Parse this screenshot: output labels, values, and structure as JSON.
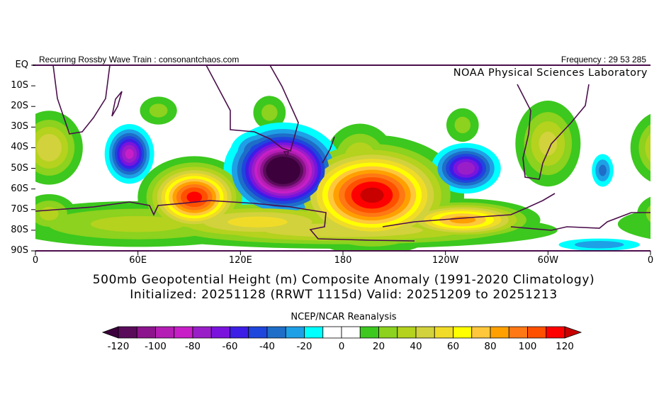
{
  "header": {
    "left_text": "Recurring Rossby Wave Train : consonantchaos.com",
    "right_text": "Frequency : 29 53 285",
    "lab_text": "NOAA Physical Sciences Laboratory"
  },
  "title": {
    "line1": "500mb Geopotential Height (m) Composite Anomaly (1991-2020 Climatology)",
    "line2": "Initialized: 20251128 (RRWT 1115d) Valid: 20251209 to 20251213"
  },
  "colorbar": {
    "title": "NCEP/NCAR Reanalysis",
    "labels": [
      "-120",
      "-100",
      "-80",
      "-60",
      "-40",
      "-20",
      "0",
      "20",
      "40",
      "60",
      "80",
      "100",
      "120"
    ],
    "colors": [
      "#5a0c5a",
      "#8c148c",
      "#b41eb4",
      "#c81ec8",
      "#9a1ec8",
      "#7a14dc",
      "#3c1ee6",
      "#1e46dc",
      "#1e6ec8",
      "#1ea0e6",
      "#00ffff",
      "#ffffff",
      "#ffffff",
      "#3cc81e",
      "#8cd21e",
      "#b4d21e",
      "#d2d23c",
      "#f0dc28",
      "#ffff00",
      "#ffc83c",
      "#ffa000",
      "#ff7814",
      "#ff5000",
      "#ff0000"
    ],
    "under_color": "#3c003c",
    "over_color": "#c80000"
  },
  "chart_data": {
    "type": "contour-map",
    "variable": "500mb geopotential height anomaly (m)",
    "levels_min": -120,
    "levels_max": 120,
    "level_step": 10,
    "lon_range": [
      0,
      360
    ],
    "lat_range": [
      0,
      -90
    ],
    "y_ticks": [
      "EQ",
      "10S",
      "20S",
      "30S",
      "40S",
      "50S",
      "60S",
      "70S",
      "80S",
      "90S"
    ],
    "x_ticks": [
      "0",
      "60E",
      "120E",
      "180",
      "120W",
      "60W",
      "0"
    ],
    "anomaly_centers": [
      {
        "lon": 197,
        "lat": -63,
        "amp": 125,
        "sx": 24,
        "sy": 13
      },
      {
        "lon": 93,
        "lat": -64,
        "amp": 115,
        "sx": 15,
        "sy": 9
      },
      {
        "lon": 250,
        "lat": -75,
        "amp": 85,
        "sx": 22,
        "sy": 5
      },
      {
        "lon": 130,
        "lat": -76,
        "amp": 55,
        "sx": 40,
        "sy": 6
      },
      {
        "lon": 60,
        "lat": -77,
        "amp": 35,
        "sx": 50,
        "sy": 7
      },
      {
        "lon": 180,
        "lat": -80,
        "amp": 50,
        "sx": 70,
        "sy": 5
      },
      {
        "lon": 8,
        "lat": -40,
        "amp": 50,
        "sx": 11,
        "sy": 10
      },
      {
        "lon": 8,
        "lat": -72,
        "amp": 35,
        "sx": 10,
        "sy": 6
      },
      {
        "lon": 300,
        "lat": -38,
        "amp": 45,
        "sx": 11,
        "sy": 12
      },
      {
        "lon": 72,
        "lat": -22,
        "amp": 25,
        "sx": 8,
        "sy": 5
      },
      {
        "lon": 137,
        "lat": -23,
        "amp": 25,
        "sx": 7,
        "sy": 6
      },
      {
        "lon": 250,
        "lat": -29,
        "amp": 25,
        "sx": 7,
        "sy": 6
      },
      {
        "lon": 190,
        "lat": -45,
        "amp": 40,
        "sx": 12,
        "sy": 10
      },
      {
        "lon": 145,
        "lat": -51,
        "amp": -150,
        "sx": 15,
        "sy": 10
      },
      {
        "lon": 132,
        "lat": -42,
        "amp": -50,
        "sx": 10,
        "sy": 6
      },
      {
        "lon": 55,
        "lat": -43,
        "amp": -85,
        "sx": 7,
        "sy": 7
      },
      {
        "lon": 252,
        "lat": -50,
        "amp": -80,
        "sx": 10,
        "sy": 6
      },
      {
        "lon": 332,
        "lat": -51,
        "amp": -35,
        "sx": 4,
        "sy": 5
      },
      {
        "lon": 330,
        "lat": -87,
        "amp": -30,
        "sx": 16,
        "sy": 2
      }
    ]
  }
}
